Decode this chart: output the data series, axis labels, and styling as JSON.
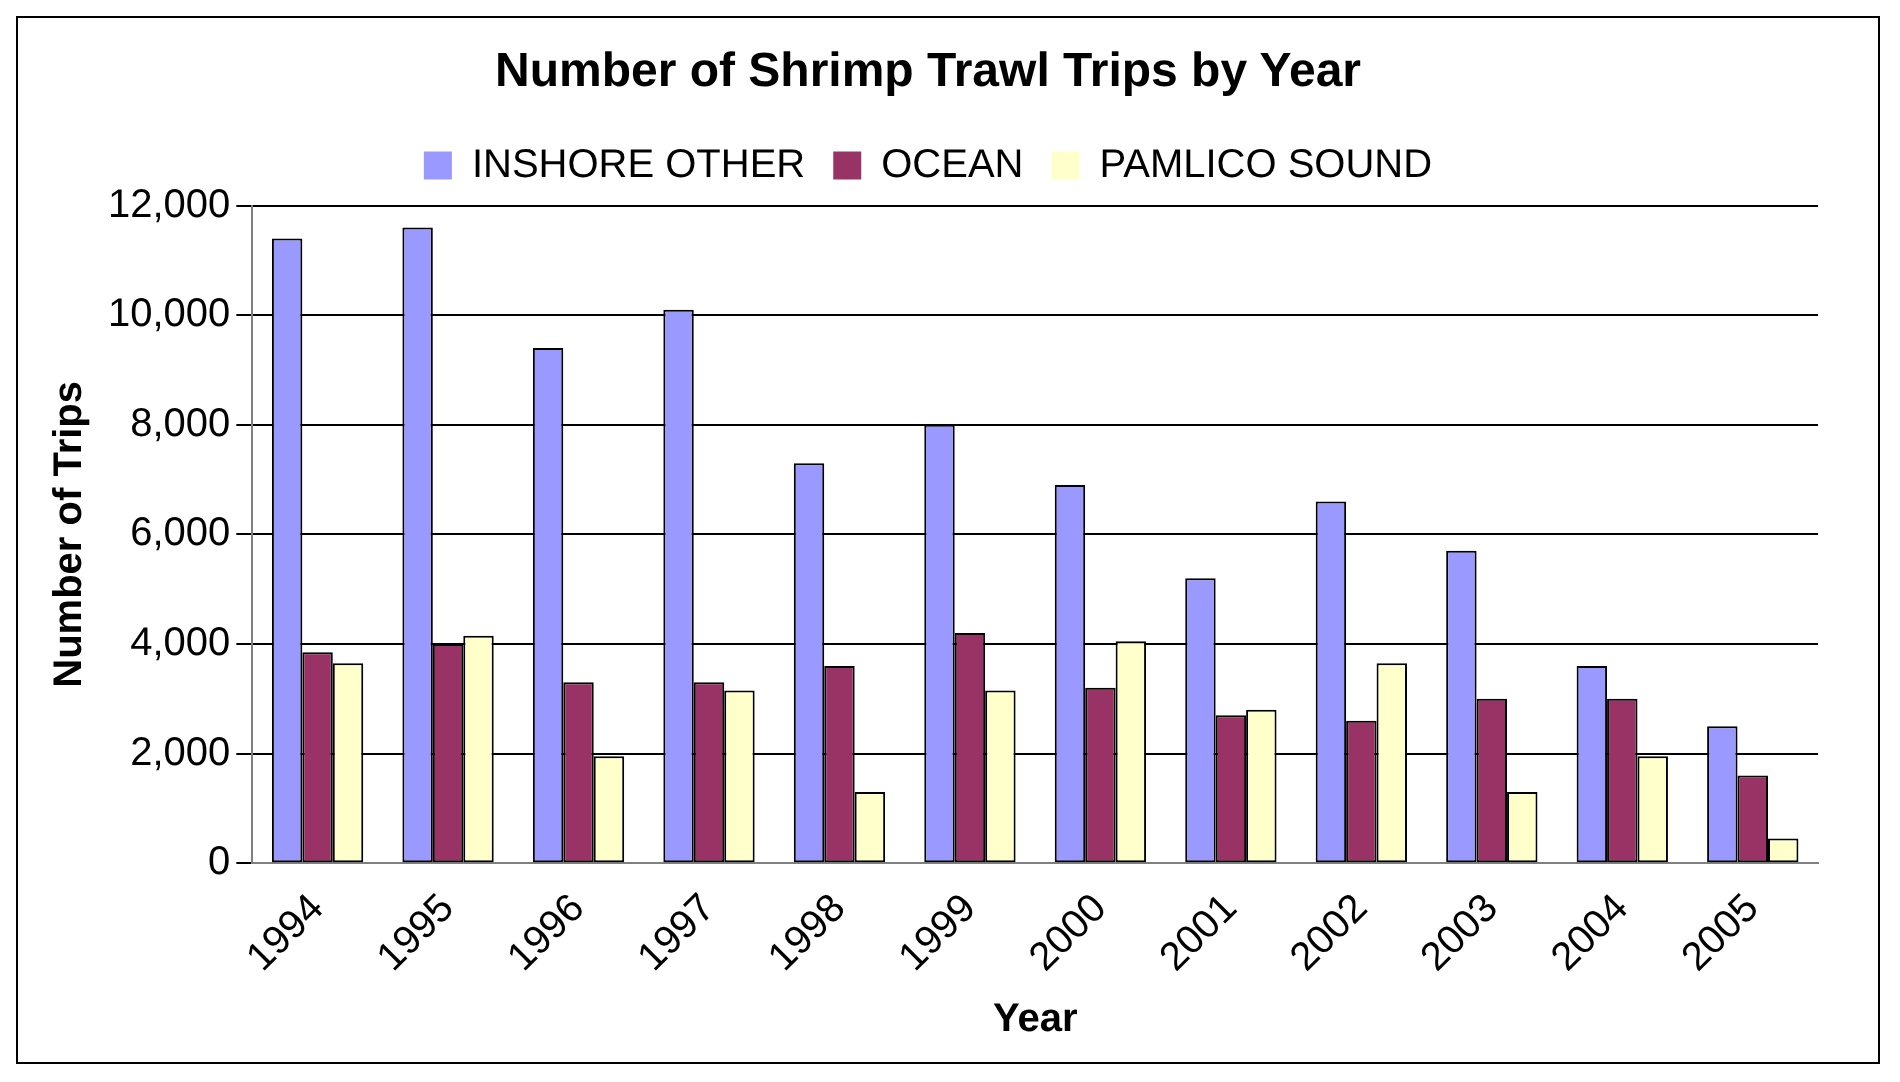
{
  "chart_data": {
    "type": "bar",
    "title": "Number of Shrimp Trawl Trips by Year",
    "xlabel": "Year",
    "ylabel": "Number of Trips",
    "categories": [
      "1994",
      "1995",
      "1996",
      "1997",
      "1998",
      "1999",
      "2000",
      "2001",
      "2002",
      "2003",
      "2004",
      "2005"
    ],
    "series": [
      {
        "name": "INSHORE OTHER",
        "color": "#9999ff",
        "values": [
          11400,
          11600,
          9400,
          10100,
          7300,
          8000,
          6900,
          5200,
          6600,
          5700,
          3600,
          2500
        ]
      },
      {
        "name": "OCEAN",
        "color": "#993366",
        "values": [
          3850,
          4000,
          3300,
          3300,
          3600,
          4200,
          3200,
          2700,
          2600,
          3000,
          3000,
          1600
        ]
      },
      {
        "name": "PAMLICO SOUND",
        "color": "#ffffcc",
        "values": [
          3650,
          4150,
          1950,
          3150,
          1300,
          3150,
          4050,
          2800,
          3650,
          1300,
          1950,
          450
        ]
      }
    ],
    "ylim": [
      0,
      12000
    ],
    "yticks": [
      0,
      {
        "value": 2000,
        "label": "2,000"
      },
      {
        "value": 4000,
        "label": "4,000"
      },
      {
        "value": 6000,
        "label": "6,000"
      },
      {
        "value": 8000,
        "label": "8,000"
      },
      {
        "value": 10000,
        "label": "10,000"
      },
      {
        "value": 12000,
        "label": "12,000"
      }
    ],
    "grid": "y",
    "legend": "top"
  }
}
